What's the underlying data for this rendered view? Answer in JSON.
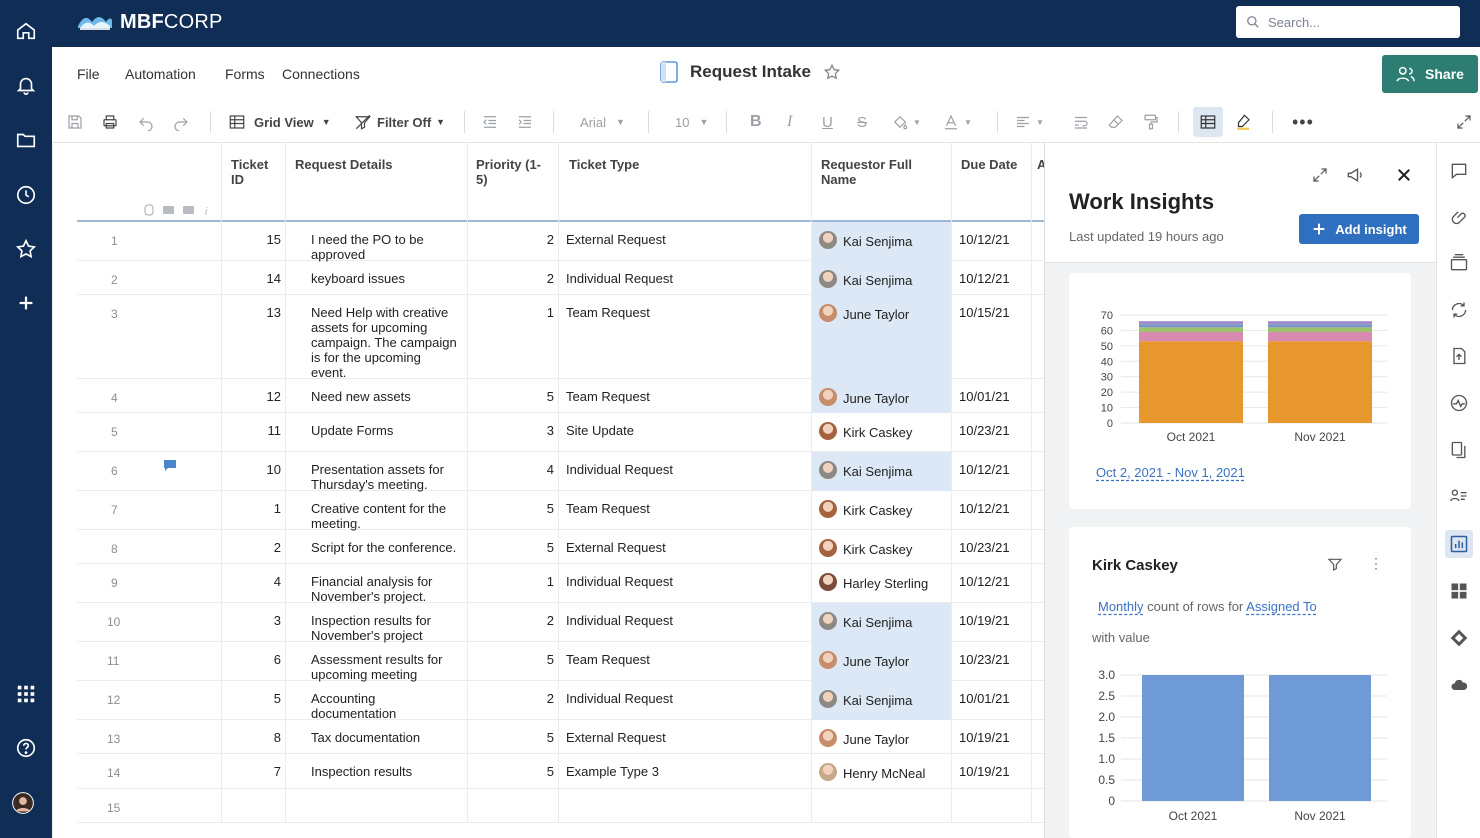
{
  "header": {
    "brand_bold": "MBF",
    "brand_rest": "CORP",
    "search_placeholder": "Search..."
  },
  "menubar": {
    "items": [
      "File",
      "Automation",
      "Forms",
      "Connections"
    ],
    "sheet_title": "Request Intake",
    "share_label": "Share"
  },
  "toolbar": {
    "view_label": "Grid View",
    "filter_label": "Filter Off",
    "font": "Arial",
    "font_size": "10"
  },
  "grid": {
    "columns": [
      "Ticket ID",
      "Request Details",
      "Priority (1-5)",
      "Ticket Type",
      "Requestor Full Name",
      "Due Date",
      "A"
    ],
    "rows": [
      {
        "num": "1",
        "id": "15",
        "details": [
          "I need the PO to be",
          "approved"
        ],
        "priority": "2",
        "type": "External Request",
        "name": "Kai Senjima",
        "due": "10/12/21"
      },
      {
        "num": "2",
        "id": "14",
        "details": [
          "keyboard issues"
        ],
        "priority": "2",
        "type": "Individual Request",
        "name": "Kai Senjima",
        "due": "10/12/21"
      },
      {
        "num": "3",
        "id": "13",
        "details": [
          "Need Help with creative",
          "assets for upcoming",
          "campaign. The campaign",
          "is for the upcoming",
          "event."
        ],
        "priority": "1",
        "type": "Team Request",
        "name": "June Taylor",
        "due": "10/15/21"
      },
      {
        "num": "4",
        "id": "12",
        "details": [
          "Need new assets"
        ],
        "priority": "5",
        "type": "Team Request",
        "name": "June Taylor",
        "due": "10/01/21"
      },
      {
        "num": "5",
        "id": "11",
        "details": [
          "Update Forms"
        ],
        "priority": "3",
        "type": "Site Update",
        "name": "Kirk Caskey",
        "due": "10/23/21"
      },
      {
        "num": "6",
        "id": "10",
        "details": [
          "Presentation assets for",
          "Thursday's meeting."
        ],
        "priority": "4",
        "type": "Individual Request",
        "name": "Kai Senjima",
        "due": "10/12/21"
      },
      {
        "num": "7",
        "id": "1",
        "details": [
          "Creative content for the",
          "meeting."
        ],
        "priority": "5",
        "type": "Team Request",
        "name": "Kirk Caskey",
        "due": "10/12/21"
      },
      {
        "num": "8",
        "id": "2",
        "details": [
          "Script for the conference."
        ],
        "priority": "5",
        "type": "External Request",
        "name": "Kirk Caskey",
        "due": "10/23/21"
      },
      {
        "num": "9",
        "id": "4",
        "details": [
          "Financial analysis for",
          "November's project."
        ],
        "priority": "1",
        "type": "Individual Request",
        "name": "Harley Sterling",
        "due": "10/12/21"
      },
      {
        "num": "10",
        "id": "3",
        "details": [
          "Inspection results for",
          "November's project"
        ],
        "priority": "2",
        "type": "Individual Request",
        "name": "Kai Senjima",
        "due": "10/19/21"
      },
      {
        "num": "11",
        "id": "6",
        "details": [
          "Assessment results for",
          "upcoming meeting"
        ],
        "priority": "5",
        "type": "Team Request",
        "name": "June Taylor",
        "due": "10/23/21"
      },
      {
        "num": "12",
        "id": "5",
        "details": [
          "Accounting",
          "documentation"
        ],
        "priority": "2",
        "type": "Individual Request",
        "name": "Kai Senjima",
        "due": "10/01/21"
      },
      {
        "num": "13",
        "id": "8",
        "details": [
          "Tax documentation"
        ],
        "priority": "5",
        "type": "External Request",
        "name": "June Taylor",
        "due": "10/19/21"
      },
      {
        "num": "14",
        "id": "7",
        "details": [
          "Inspection results"
        ],
        "priority": "5",
        "type": "Example Type 3",
        "name": "Henry McNeal",
        "due": "10/19/21"
      },
      {
        "num": "15",
        "id": "",
        "details": [],
        "priority": "",
        "type": "",
        "name": "",
        "due": ""
      }
    ]
  },
  "insights": {
    "title": "Work Insights",
    "updated": "Last updated 19 hours ago",
    "add_label": "Add insight",
    "card1": {
      "range_link": "Oct 2, 2021 - Nov 1, 2021",
      "chart_data": {
        "type": "bar",
        "stacked": true,
        "categories": [
          "Oct 2021",
          "Nov 2021"
        ],
        "series": [
          {
            "values": [
              53,
              53
            ],
            "color": "#e8962e"
          },
          {
            "values": [
              6,
              6
            ],
            "color": "#d98ab1"
          },
          {
            "values": [
              3,
              3
            ],
            "color": "#9cc36b"
          },
          {
            "values": [
              2,
              2
            ],
            "color": "#7b95c9"
          },
          {
            "values": [
              2,
              2
            ],
            "color": "#9e8ec7"
          }
        ],
        "yticks": [
          0,
          10,
          20,
          30,
          40,
          50,
          60,
          70
        ],
        "ylim": [
          0,
          70
        ]
      }
    },
    "card2": {
      "title": "Kirk Caskey",
      "desc_link1": "Monthly",
      "desc_mid": "count of rows for",
      "desc_link2": "Assigned To",
      "desc_tail": "with value",
      "chart_data": {
        "type": "bar",
        "categories": [
          "Oct 2021",
          "Nov 2021"
        ],
        "values": [
          3.0,
          3.0
        ],
        "color": "#6e9bd6",
        "yticks": [
          "0",
          "0.5",
          "1.0",
          "1.5",
          "2.0",
          "2.5",
          "3.0"
        ],
        "ylim": [
          0,
          3.0
        ]
      }
    }
  }
}
